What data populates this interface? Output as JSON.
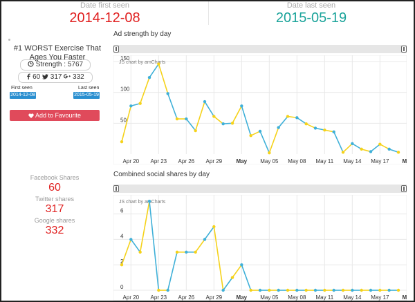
{
  "header": {
    "first_seen_label": "Date first seen",
    "first_seen_value": "2014-12-08",
    "last_seen_label": "Date last seen",
    "last_seen_value": "2015-05-19",
    "first_color": "#e02020",
    "last_color": "#1aa39a"
  },
  "ad": {
    "title": "#1 WORST Exercise That Ages You Faster",
    "strength_text": "Strength : 5767",
    "facebook_count": "60",
    "twitter_count": "317",
    "google_count": "332",
    "first_seen_label": "First seen",
    "first_seen_date": "2014-12-08",
    "last_seen_label": "Last seen",
    "last_seen_date": "2015-05-19",
    "favourite_label": "Add to Favourite",
    "icons": [
      "clock-icon",
      "facebook-icon",
      "twitter-icon",
      "google-plus-icon",
      "heart-icon"
    ]
  },
  "stats": {
    "facebook_label": "Facebook Shares",
    "facebook_value": "60",
    "twitter_label": "Twitter shares",
    "twitter_value": "317",
    "google_label": "Google shares",
    "google_value": "332"
  },
  "colors": {
    "yellow": "#f5d21a",
    "blue": "#3fb0d8",
    "red": "#e02020"
  },
  "chart_data": [
    {
      "type": "line",
      "title": "Ad strength by day",
      "credit": "JS chart by amCharts",
      "x": [
        "Apr 19",
        "Apr 20",
        "Apr 21",
        "Apr 22",
        "Apr 23",
        "Apr 24",
        "Apr 25",
        "Apr 26",
        "Apr 27",
        "Apr 28",
        "Apr 29",
        "Apr 30",
        "May 01",
        "May 02",
        "May 03",
        "May 04",
        "May 05",
        "May 06",
        "May 07",
        "May 08",
        "May 09",
        "May 10",
        "May 11",
        "May 12",
        "May 13",
        "May 14",
        "May 15",
        "May 16",
        "May 17",
        "May 18",
        "May 19"
      ],
      "values": [
        20,
        78,
        82,
        124,
        146,
        98,
        57,
        57,
        38,
        85,
        61,
        49,
        50,
        78,
        30,
        37,
        2,
        43,
        61,
        59,
        49,
        42,
        39,
        36,
        3,
        17,
        8,
        4,
        16,
        8,
        3
      ],
      "xtick_labels": [
        "Apr 20",
        "Apr 23",
        "Apr 26",
        "Apr 29",
        "May",
        "May 05",
        "May 08",
        "May 11",
        "May 14",
        "May 17",
        "May"
      ],
      "ytick_labels": [
        "50",
        "100",
        "150"
      ],
      "ylim": [
        0,
        160
      ],
      "grid": true,
      "colors": [
        "#f5d21a",
        "#3fb0d8"
      ]
    },
    {
      "type": "line",
      "title": "Combined social shares by day",
      "credit": "JS chart by amCharts",
      "x": [
        "Apr 19",
        "Apr 20",
        "Apr 21",
        "Apr 22",
        "Apr 23",
        "Apr 24",
        "Apr 25",
        "Apr 26",
        "Apr 27",
        "Apr 28",
        "Apr 29",
        "Apr 30",
        "May 01",
        "May 02",
        "May 03",
        "May 04",
        "May 05",
        "May 06",
        "May 07",
        "May 08",
        "May 09",
        "May 10",
        "May 11",
        "May 12",
        "May 13",
        "May 14",
        "May 15",
        "May 16",
        "May 17",
        "May 18",
        "May 19"
      ],
      "values": [
        2,
        4,
        3,
        7,
        0,
        0,
        3,
        3,
        3,
        4,
        5,
        0,
        1,
        2,
        0,
        0,
        0,
        0,
        0,
        0,
        0,
        0,
        0,
        0,
        0,
        0,
        0,
        0,
        0,
        0,
        0
      ],
      "xtick_labels": [
        "Apr 20",
        "Apr 23",
        "Apr 26",
        "Apr 29",
        "May",
        "May 05",
        "May 08",
        "May 11",
        "May 14",
        "May 17",
        "May"
      ],
      "ytick_labels": [
        "0",
        "2",
        "4",
        "6"
      ],
      "ylim": [
        0,
        7.5
      ],
      "grid": true,
      "colors": [
        "#f5d21a",
        "#3fb0d8"
      ]
    }
  ]
}
